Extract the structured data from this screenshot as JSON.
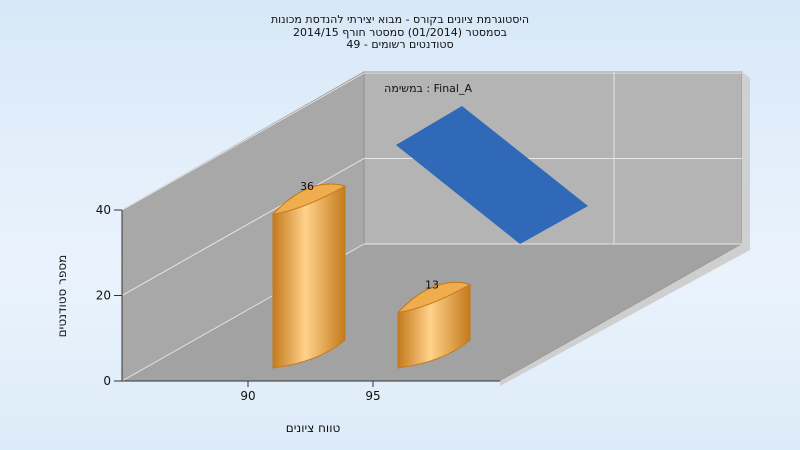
{
  "chart_data": {
    "type": "bar",
    "title_lines": [
      "היסטוגרמת ציונים בקורס - מבוא יצירתי להנדסת מכונות",
      "בסמסטר  (01/2014)  סמסטר חורף 2014/15",
      "סטודנטים רשומים - 49"
    ],
    "xlabel": "טווח ציונים",
    "ylabel": "מספר סטודנטים",
    "categories": [
      "90",
      "95"
    ],
    "series": [
      {
        "name": "במשימה : Final_A",
        "values": [
          36,
          13
        ]
      }
    ],
    "ylim": [
      0,
      40
    ],
    "yticks": [
      0,
      20,
      40
    ],
    "grid": true,
    "legend_position": "top-right"
  },
  "colors": {
    "bar_light": "#ffd28a",
    "bar_mid": "#f0ad4e",
    "bar_dark": "#c47a1c",
    "legend_swatch": "#2f69b7",
    "wall": "#b4b4b4",
    "wall_dark": "#9e9e9e"
  }
}
